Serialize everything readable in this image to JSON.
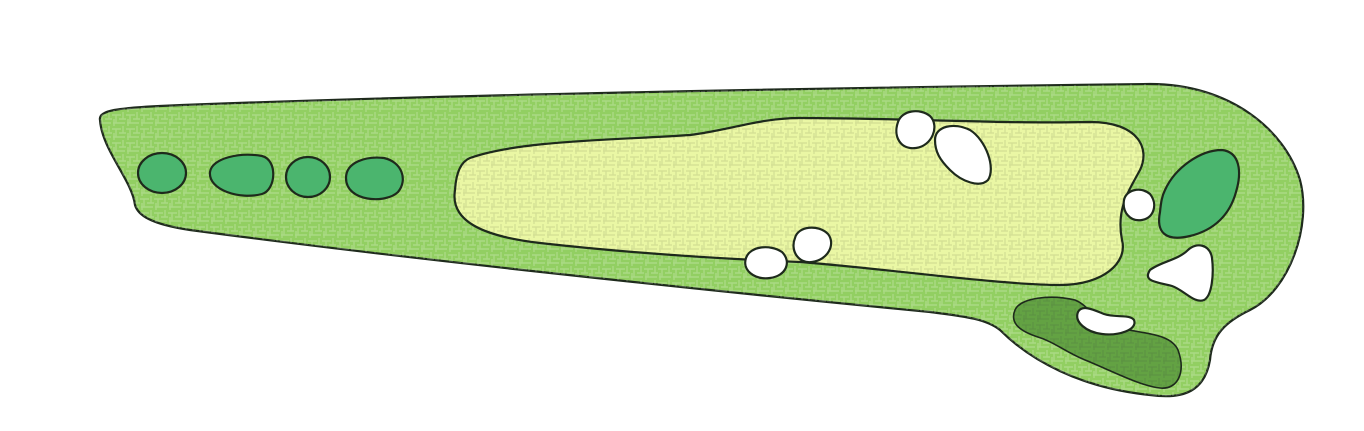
{
  "map": {
    "kind": "golf-hole-layout",
    "colors": {
      "rough": "#92cf62",
      "fairway": "#eaf7a4",
      "tee": "#4bb56e",
      "green": "#4bb56e",
      "bunker": "#ffffff",
      "trees": "#5a9a3e",
      "outline": "#1e2a1c",
      "background": "#ffffff"
    },
    "features": {
      "tee_boxes": 4,
      "fairways": 1,
      "greens": 1,
      "bunkers": 7,
      "tree_areas": 1
    }
  }
}
